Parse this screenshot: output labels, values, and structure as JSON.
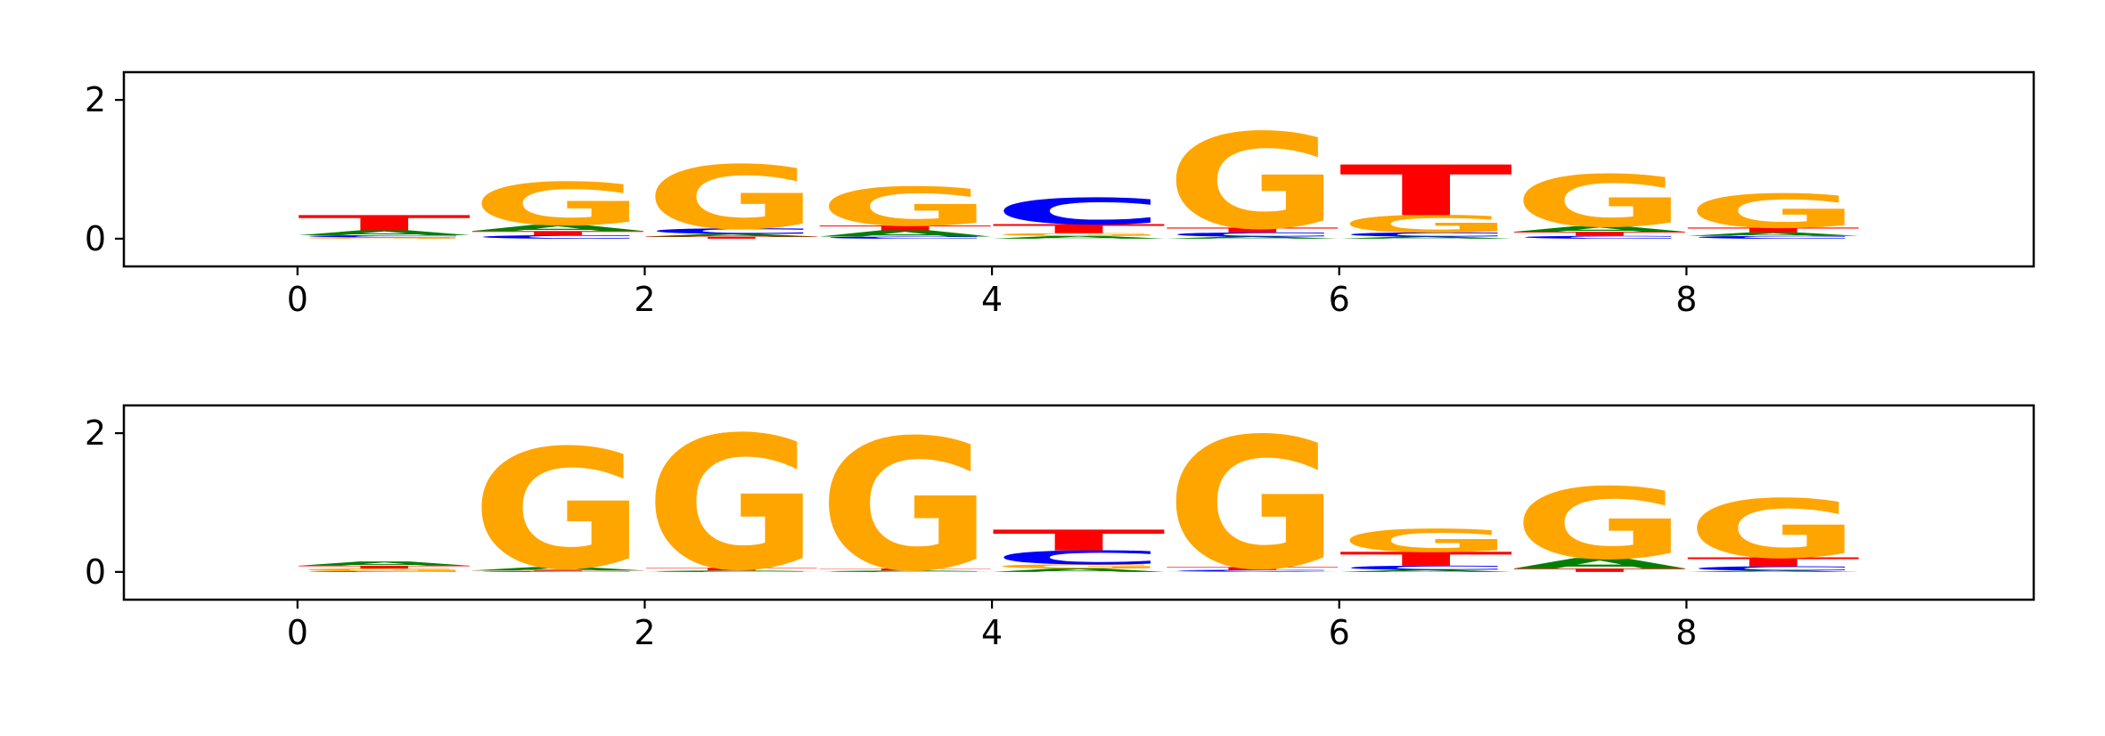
{
  "colors": {
    "A": "#008000",
    "C": "#0000ff",
    "G": "#ffa500",
    "T": "#ff0000",
    "axis": "#000000"
  },
  "chart_data": [
    {
      "type": "sequence-logo",
      "title": "",
      "xlabel": "",
      "ylabel": "",
      "xlim": [
        -1,
        10
      ],
      "ylim": [
        -0.4,
        2.4
      ],
      "xticks": [
        "0",
        "2",
        "4",
        "6",
        "8"
      ],
      "yticks": [
        "0",
        "2"
      ],
      "grid": false,
      "positions": [
        [
          {
            "base": "G",
            "bits": 0.02
          },
          {
            "base": "C",
            "bits": 0.03
          },
          {
            "base": "A",
            "bits": 0.07
          },
          {
            "base": "T",
            "bits": 0.22
          }
        ],
        [
          {
            "base": "C",
            "bits": 0.05
          },
          {
            "base": "T",
            "bits": 0.06
          },
          {
            "base": "A",
            "bits": 0.09
          },
          {
            "base": "G",
            "bits": 0.62
          }
        ],
        [
          {
            "base": "T",
            "bits": 0.03
          },
          {
            "base": "A",
            "bits": 0.04
          },
          {
            "base": "C",
            "bits": 0.08
          },
          {
            "base": "G",
            "bits": 0.92
          }
        ],
        [
          {
            "base": "C",
            "bits": 0.03
          },
          {
            "base": "A",
            "bits": 0.09
          },
          {
            "base": "T",
            "bits": 0.07
          },
          {
            "base": "G",
            "bits": 0.56
          }
        ],
        [
          {
            "base": "A",
            "bits": 0.04
          },
          {
            "base": "G",
            "bits": 0.04
          },
          {
            "base": "T",
            "bits": 0.13
          },
          {
            "base": "C",
            "bits": 0.38
          }
        ],
        [
          {
            "base": "A",
            "bits": 0.03
          },
          {
            "base": "C",
            "bits": 0.06
          },
          {
            "base": "T",
            "bits": 0.07
          },
          {
            "base": "G",
            "bits": 1.38
          }
        ],
        [
          {
            "base": "A",
            "bits": 0.03
          },
          {
            "base": "C",
            "bits": 0.06
          },
          {
            "base": "G",
            "bits": 0.25
          },
          {
            "base": "T",
            "bits": 0.73
          }
        ],
        [
          {
            "base": "C",
            "bits": 0.04
          },
          {
            "base": "T",
            "bits": 0.06
          },
          {
            "base": "A",
            "bits": 0.08
          },
          {
            "base": "G",
            "bits": 0.75
          }
        ],
        [
          {
            "base": "C",
            "bits": 0.04
          },
          {
            "base": "A",
            "bits": 0.05
          },
          {
            "base": "T",
            "bits": 0.07
          },
          {
            "base": "G",
            "bits": 0.49
          }
        ]
      ]
    },
    {
      "type": "sequence-logo",
      "title": "",
      "xlabel": "",
      "ylabel": "",
      "xlim": [
        -1,
        10
      ],
      "ylim": [
        -0.4,
        2.4
      ],
      "xticks": [
        "0",
        "2",
        "4",
        "6",
        "8"
      ],
      "yticks": [
        "0",
        "2"
      ],
      "grid": false,
      "positions": [
        [
          {
            "base": "C",
            "bits": 0.01
          },
          {
            "base": "G",
            "bits": 0.04
          },
          {
            "base": "T",
            "bits": 0.04
          },
          {
            "base": "A",
            "bits": 0.06
          }
        ],
        [
          {
            "base": "C",
            "bits": 0.01
          },
          {
            "base": "T",
            "bits": 0.01
          },
          {
            "base": "A",
            "bits": 0.05
          },
          {
            "base": "G",
            "bits": 1.73
          }
        ],
        [
          {
            "base": "C",
            "bits": 0.01
          },
          {
            "base": "A",
            "bits": 0.01
          },
          {
            "base": "T",
            "bits": 0.04
          },
          {
            "base": "G",
            "bits": 1.93
          }
        ],
        [
          {
            "base": "C",
            "bits": 0.01
          },
          {
            "base": "A",
            "bits": 0.01
          },
          {
            "base": "T",
            "bits": 0.03
          },
          {
            "base": "G",
            "bits": 1.9
          }
        ],
        [
          {
            "base": "A",
            "bits": 0.05
          },
          {
            "base": "G",
            "bits": 0.06
          },
          {
            "base": "C",
            "bits": 0.2
          },
          {
            "base": "T",
            "bits": 0.3
          }
        ],
        [
          {
            "base": "A",
            "bits": 0.01
          },
          {
            "base": "C",
            "bits": 0.02
          },
          {
            "base": "T",
            "bits": 0.04
          },
          {
            "base": "G",
            "bits": 1.9
          }
        ],
        [
          {
            "base": "A",
            "bits": 0.03
          },
          {
            "base": "C",
            "bits": 0.06
          },
          {
            "base": "T",
            "bits": 0.2
          },
          {
            "base": "G",
            "bits": 0.33
          }
        ],
        [
          {
            "base": "T",
            "bits": 0.05
          },
          {
            "base": "A",
            "bits": 0.15
          },
          {
            "base": "G",
            "bits": 1.03
          }
        ],
        [
          {
            "base": "A",
            "bits": 0.02
          },
          {
            "base": "C",
            "bits": 0.06
          },
          {
            "base": "T",
            "bits": 0.13
          },
          {
            "base": "G",
            "bits": 0.85
          }
        ]
      ]
    }
  ]
}
